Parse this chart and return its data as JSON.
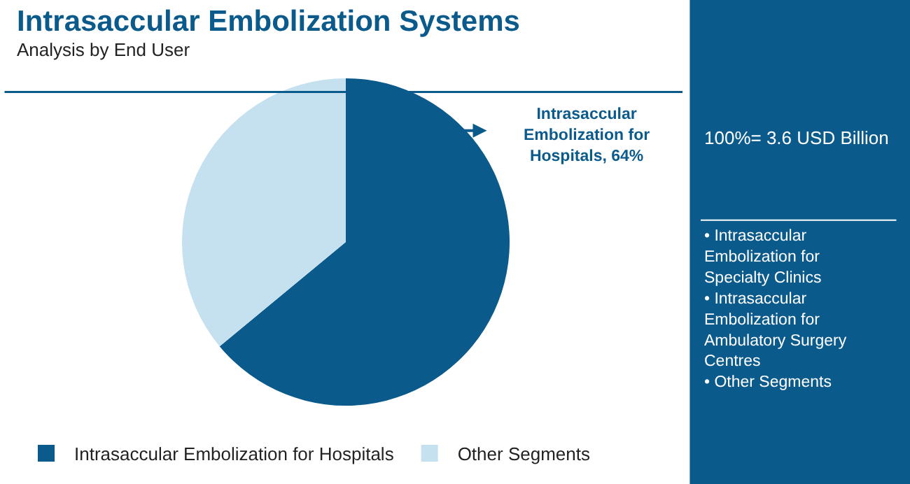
{
  "chart_data": {
    "type": "pie",
    "title": "Intrasaccular Embolization Systems",
    "subtitle": "Analysis by End User",
    "categories": [
      "Intrasaccular Embolization for Hospitals",
      "Other Segments"
    ],
    "values": [
      64,
      36
    ],
    "colors": [
      "#0b5a8c",
      "#c5e1f0"
    ],
    "legend": "bottom",
    "annotations": [
      "Intrasaccular\nEmbolization for\nHospitals, 64%",
      "100%= 3.6 USD Billion",
      "• Intrasaccular\nEmbolization for\nSpecialty Clinics\n• Intrasaccular\nEmbolization for\nAmbulatory Surgery\nCentres\n• Other Segments"
    ]
  }
}
